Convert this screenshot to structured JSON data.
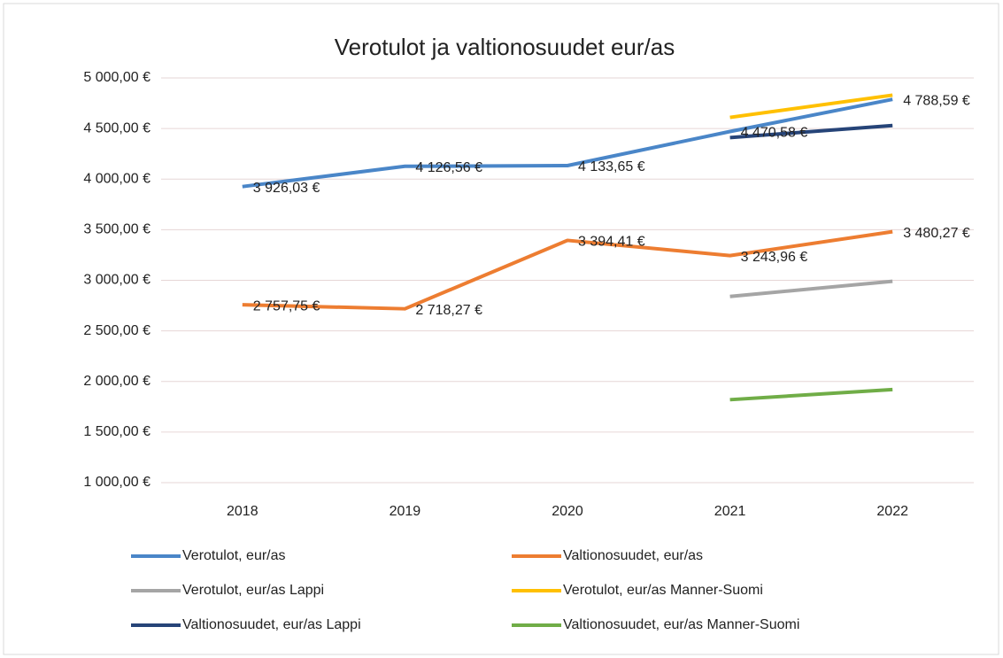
{
  "chart_data": {
    "type": "line",
    "title": "Verotulot ja valtionosuudet eur/as",
    "categories": [
      "2018",
      "2019",
      "2020",
      "2021",
      "2022"
    ],
    "ylim": [
      1000,
      5000
    ],
    "yticks": [
      {
        "value": 1000,
        "label": "1 000,00 €"
      },
      {
        "value": 1500,
        "label": "1 500,00 €"
      },
      {
        "value": 2000,
        "label": "2 000,00 €"
      },
      {
        "value": 2500,
        "label": "2 500,00 €"
      },
      {
        "value": 3000,
        "label": "3 000,00 €"
      },
      {
        "value": 3500,
        "label": "3 500,00 €"
      },
      {
        "value": 4000,
        "label": "4 000,00 €"
      },
      {
        "value": 4500,
        "label": "4 500,00 €"
      },
      {
        "value": 5000,
        "label": "5 000,00 €"
      }
    ],
    "grid": true,
    "legend": "bottom",
    "series": [
      {
        "name": "Verotulot, eur/as",
        "color": "#4a86c8",
        "values": [
          3926.03,
          4126.56,
          4133.65,
          4470.58,
          4788.59
        ],
        "value_labels": [
          "3 926,03 €",
          "4 126,56 €",
          "4 133,65 €",
          "4 470,58 €",
          "4 788,59 €"
        ]
      },
      {
        "name": "Valtionosuudet, eur/as",
        "color": "#ed7d31",
        "values": [
          2757.75,
          2718.27,
          3394.41,
          3243.96,
          3480.27
        ],
        "value_labels": [
          "2 757,75 €",
          "2 718,27 €",
          "3 394,41 €",
          "3 243,96 €",
          "3 480,27 €"
        ]
      },
      {
        "name": "Verotulot, eur/as Lappi",
        "color": "#a5a5a5",
        "values": [
          null,
          null,
          null,
          2840,
          2990
        ]
      },
      {
        "name": "Verotulot, eur/as Manner-Suomi",
        "color": "#ffc000",
        "values": [
          null,
          null,
          null,
          4610,
          4830
        ]
      },
      {
        "name": "Valtionosuudet, eur/as Lappi",
        "color": "#264478",
        "values": [
          null,
          null,
          null,
          4410,
          4530
        ]
      },
      {
        "name": "Valtionosuudet, eur/as Manner-Suomi",
        "color": "#70ad47",
        "values": [
          null,
          null,
          null,
          1820,
          1920
        ]
      }
    ]
  }
}
